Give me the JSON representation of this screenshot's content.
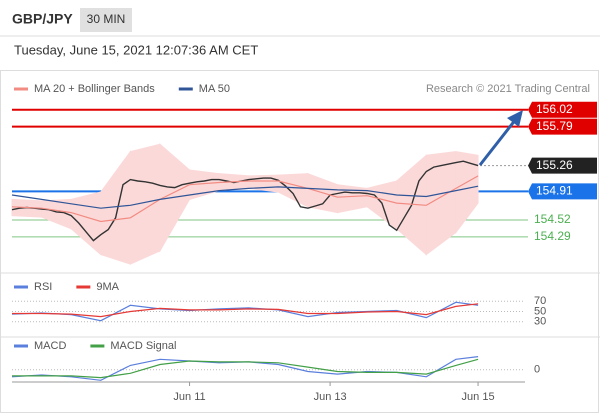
{
  "header": {
    "title": "GBP/JPY",
    "timeframe": "30 MIN",
    "date": "Tuesday, June 15, 2021 12:07:36 AM CET"
  },
  "chart_data": [
    {
      "type": "line",
      "source": "Research © 2021 Trading Central",
      "xlim": [
        0,
        68.4
      ],
      "ylim": [
        153.84,
        156.22
      ],
      "price": {
        "color": "#333333",
        "x": [
          0,
          1,
          2,
          3,
          4,
          5,
          6,
          7,
          8,
          9,
          10,
          11,
          12,
          13,
          14,
          15,
          16,
          17,
          18,
          19,
          20,
          21,
          22,
          23,
          24,
          25,
          26,
          27,
          28,
          29,
          30,
          31,
          32,
          33,
          34,
          35,
          36,
          37,
          38,
          39,
          40,
          41,
          42,
          43,
          44,
          45,
          46,
          47,
          48,
          49,
          50,
          51,
          52,
          53,
          54,
          55,
          56,
          57,
          58,
          59,
          60,
          61,
          62,
          63
        ],
        "values": [
          154.66,
          154.68,
          154.69,
          154.68,
          154.67,
          154.66,
          154.63,
          154.62,
          154.58,
          154.48,
          154.36,
          154.24,
          154.32,
          154.39,
          154.55,
          155.0,
          155.07,
          155.05,
          155.04,
          155.02,
          154.99,
          154.97,
          154.96,
          155.0,
          155.02,
          155.04,
          155.05,
          155.07,
          155.07,
          155.05,
          155.03,
          155.05,
          155.07,
          155.08,
          155.09,
          155.09,
          155.06,
          154.98,
          154.88,
          154.7,
          154.68,
          154.71,
          154.74,
          154.86,
          154.88,
          154.9,
          154.89,
          154.89,
          154.88,
          154.86,
          154.75,
          154.45,
          154.38,
          154.55,
          154.72,
          155.05,
          155.18,
          155.24,
          155.26,
          155.28,
          155.3,
          155.32,
          155.29,
          155.26
        ]
      },
      "series": [
        {
          "name": "MA 20 + Bollinger Bands",
          "color": "#f28b82",
          "band_color": "#fbd9d9",
          "x": [
            0,
            4,
            8,
            12,
            16,
            20,
            24,
            28,
            32,
            36,
            40,
            44,
            48,
            52,
            56,
            60,
            63
          ],
          "values": [
            154.7,
            154.68,
            154.62,
            154.5,
            154.55,
            154.8,
            155.0,
            155.03,
            155.05,
            155.05,
            154.95,
            154.83,
            154.85,
            154.75,
            154.72,
            154.95,
            155.12
          ],
          "upper": [
            154.8,
            154.78,
            154.8,
            154.9,
            155.45,
            155.55,
            155.2,
            155.15,
            155.12,
            155.13,
            155.15,
            155.0,
            154.95,
            155.05,
            155.4,
            155.45,
            155.4
          ],
          "lower": [
            154.58,
            154.56,
            154.4,
            154.05,
            153.92,
            154.1,
            154.8,
            154.92,
            154.95,
            154.9,
            154.7,
            154.62,
            154.7,
            154.4,
            154.05,
            154.35,
            154.75
          ]
        },
        {
          "name": "MA 50",
          "color": "#2f5597",
          "x": [
            0,
            4,
            8,
            12,
            16,
            20,
            24,
            28,
            32,
            36,
            40,
            44,
            48,
            52,
            56,
            60,
            63
          ],
          "values": [
            154.86,
            154.8,
            154.74,
            154.68,
            154.72,
            154.8,
            154.86,
            154.92,
            154.95,
            154.97,
            154.95,
            154.93,
            154.92,
            154.86,
            154.84,
            154.92,
            154.98
          ]
        }
      ],
      "levels": [
        {
          "value": 156.02,
          "color": "#e00000",
          "style": "box"
        },
        {
          "value": 155.79,
          "color": "#e00000",
          "style": "box"
        },
        {
          "value": 155.26,
          "color": "#222222",
          "style": "current"
        },
        {
          "value": 154.91,
          "color": "#1a73e8",
          "style": "box"
        },
        {
          "value": 154.52,
          "color": "#4caf50",
          "style": "text"
        },
        {
          "value": 154.29,
          "color": "#4caf50",
          "style": "text"
        }
      ]
    },
    {
      "type": "line",
      "xlim": [
        0,
        68.4
      ],
      "ylim": [
        10,
        88
      ],
      "yticks": [
        70,
        50,
        30
      ],
      "series": [
        {
          "name": "RSI",
          "color": "#5b7fdc",
          "x": [
            0,
            4,
            8,
            12,
            16,
            20,
            24,
            28,
            32,
            36,
            40,
            44,
            48,
            52,
            56,
            60,
            63
          ],
          "values": [
            45,
            47,
            44,
            32,
            62,
            55,
            52,
            55,
            57,
            53,
            40,
            48,
            50,
            52,
            38,
            68,
            62
          ]
        },
        {
          "name": "9MA",
          "color": "#e53935",
          "x": [
            0,
            4,
            8,
            12,
            16,
            20,
            24,
            28,
            32,
            36,
            40,
            44,
            48,
            52,
            56,
            60,
            63
          ],
          "values": [
            46,
            46,
            45,
            40,
            50,
            56,
            53,
            53,
            55,
            54,
            46,
            46,
            49,
            50,
            44,
            60,
            65
          ]
        }
      ]
    },
    {
      "type": "line",
      "xlim": [
        0,
        68.4
      ],
      "ylim": [
        -0.14,
        0.34
      ],
      "yticks": [
        0
      ],
      "xticks": [
        {
          "value": 24,
          "label": "Jun 11"
        },
        {
          "value": 43,
          "label": "Jun 13"
        },
        {
          "value": 63,
          "label": "Jun 15"
        }
      ],
      "series": [
        {
          "name": "MACD",
          "color": "#5b7fdc",
          "x": [
            0,
            4,
            8,
            12,
            16,
            20,
            24,
            28,
            32,
            36,
            40,
            44,
            48,
            52,
            56,
            60,
            63
          ],
          "values": [
            -0.08,
            -0.06,
            -0.08,
            -0.12,
            0.05,
            0.12,
            0.1,
            0.08,
            0.09,
            0.06,
            -0.02,
            -0.05,
            -0.02,
            -0.03,
            -0.08,
            0.12,
            0.15
          ]
        },
        {
          "name": "MACD Signal",
          "color": "#43a047",
          "x": [
            0,
            4,
            8,
            12,
            16,
            20,
            24,
            28,
            32,
            36,
            40,
            44,
            48,
            52,
            56,
            60,
            63
          ],
          "values": [
            -0.07,
            -0.07,
            -0.07,
            -0.09,
            -0.04,
            0.06,
            0.1,
            0.09,
            0.09,
            0.08,
            0.03,
            -0.02,
            -0.03,
            -0.03,
            -0.05,
            0.05,
            0.12
          ]
        }
      ]
    }
  ]
}
